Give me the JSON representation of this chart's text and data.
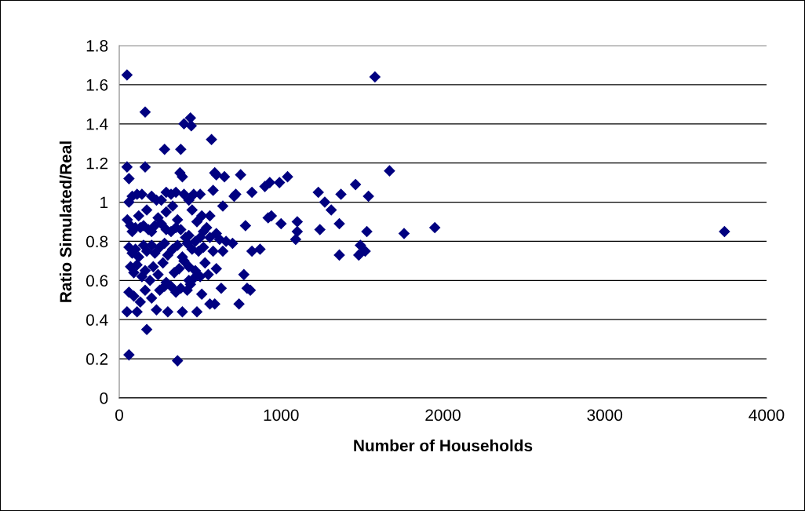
{
  "chart_data": {
    "type": "scatter",
    "xlabel": "Number of Households",
    "ylabel": "Ratio Simulated/Real",
    "xlim": [
      0,
      4000
    ],
    "xticks": [
      0,
      1000,
      2000,
      3000,
      4000
    ],
    "ylim": [
      0,
      1.8
    ],
    "yticks": [
      0,
      0.2,
      0.4,
      0.6,
      0.8,
      1,
      1.2,
      1.4,
      1.6,
      1.8
    ],
    "grid": "y",
    "marker": "diamond",
    "legend": false,
    "series": [
      {
        "color": "#000080",
        "x": [
          48,
          1580,
          160,
          440,
          400,
          445,
          570,
          280,
          380,
          48,
          160,
          60,
          375,
          390,
          590,
          600,
          650,
          750,
          720,
          710,
          1040,
          1670,
          930,
          900,
          990,
          1230,
          1370,
          1460,
          1540,
          1270,
          1310,
          820,
          580,
          640,
          560,
          1000,
          1100,
          1240,
          1360,
          1530,
          1760,
          1950,
          3740,
          1100,
          1090,
          1360,
          1480,
          1520,
          1490,
          920,
          940,
          870,
          820,
          780,
          770,
          790,
          810,
          740,
          560,
          590,
          480,
          360,
          60,
          170,
          48,
          110,
          300,
          390,
          510,
          530,
          630,
          460,
          430,
          50,
          70,
          80,
          100,
          130,
          150,
          180,
          200,
          220,
          240,
          260,
          290,
          320,
          350,
          380,
          410,
          430,
          470,
          500,
          520,
          540,
          560,
          600,
          620,
          660,
          700,
          80,
          110,
          140,
          200,
          230,
          260,
          290,
          320,
          350,
          400,
          430,
          460,
          500,
          60,
          80,
          100,
          120,
          150,
          170,
          200,
          220,
          250,
          280,
          300,
          330,
          360,
          390,
          420,
          450,
          490,
          520,
          580,
          640,
          70,
          90,
          110,
          140,
          160,
          190,
          210,
          240,
          270,
          290,
          320,
          340,
          370,
          400,
          430,
          470,
          500,
          550,
          600,
          60,
          90,
          130,
          160,
          200,
          230,
          250,
          280,
          350,
          380,
          420,
          440,
          60,
          120,
          170,
          290,
          330,
          360,
          450,
          480,
          510
        ],
        "values": [
          1.65,
          1.64,
          1.46,
          1.43,
          1.4,
          1.39,
          1.32,
          1.27,
          1.27,
          1.18,
          1.18,
          1.12,
          1.15,
          1.13,
          1.15,
          1.14,
          1.13,
          1.14,
          1.04,
          1.03,
          1.13,
          1.16,
          1.1,
          1.08,
          1.1,
          1.05,
          1.04,
          1.09,
          1.03,
          1.0,
          0.96,
          1.05,
          1.06,
          0.98,
          0.93,
          0.89,
          0.9,
          0.86,
          0.89,
          0.85,
          0.84,
          0.87,
          0.85,
          0.85,
          0.81,
          0.73,
          0.73,
          0.75,
          0.78,
          0.92,
          0.93,
          0.76,
          0.75,
          0.88,
          0.63,
          0.56,
          0.55,
          0.48,
          0.48,
          0.48,
          0.44,
          0.19,
          0.22,
          0.35,
          0.44,
          0.44,
          0.44,
          0.44,
          0.53,
          0.69,
          0.56,
          0.61,
          0.6,
          0.91,
          0.88,
          0.85,
          0.87,
          0.87,
          0.88,
          0.86,
          0.85,
          0.88,
          0.92,
          0.89,
          0.86,
          0.85,
          0.87,
          0.86,
          0.82,
          0.83,
          0.8,
          0.82,
          0.85,
          0.87,
          0.82,
          0.84,
          0.81,
          0.8,
          0.79,
          1.03,
          1.04,
          1.04,
          1.03,
          1.01,
          1.01,
          1.05,
          1.04,
          1.05,
          1.04,
          1.01,
          1.04,
          1.04,
          0.77,
          0.74,
          0.76,
          0.72,
          0.78,
          0.75,
          0.78,
          0.74,
          0.77,
          0.79,
          0.73,
          0.76,
          0.78,
          0.72,
          0.79,
          0.76,
          0.75,
          0.77,
          0.75,
          0.75,
          0.67,
          0.64,
          0.68,
          0.62,
          0.65,
          0.6,
          0.67,
          0.63,
          0.69,
          0.59,
          0.57,
          0.64,
          0.66,
          0.7,
          0.67,
          0.65,
          0.62,
          0.63,
          0.66,
          0.54,
          0.52,
          0.49,
          0.55,
          0.51,
          0.45,
          0.55,
          0.57,
          0.54,
          0.56,
          0.55,
          0.58,
          1.0,
          0.93,
          0.96,
          0.95,
          0.98,
          0.91,
          0.96,
          0.9,
          0.93
        ]
      }
    ]
  }
}
